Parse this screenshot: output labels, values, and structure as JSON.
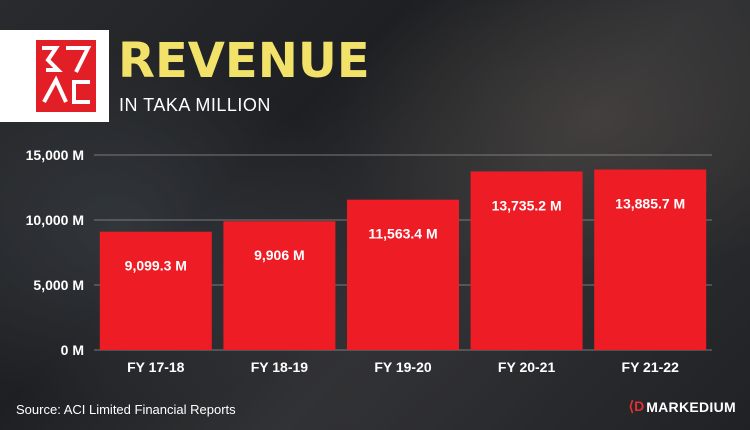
{
  "header": {
    "title": "REVENUE",
    "subtitle": "IN TAKA MILLION"
  },
  "footer": {
    "source": "Source: ACI Limited Financial Reports",
    "brand_mark": "⟨D",
    "brand_name": "MARKEDIUM"
  },
  "colors": {
    "bar": "#ee1c25",
    "title": "#f3e26a",
    "grid": "#9a9a9a"
  },
  "chart_data": {
    "type": "bar",
    "categories": [
      "FY 17-18",
      "FY 18-19",
      "FY 19-20",
      "FY 20-21",
      "FY 21-22"
    ],
    "values": [
      9099.3,
      9906,
      11563.4,
      13735.2,
      13885.7
    ],
    "value_labels": [
      "9,099.3 M",
      "9,906 M",
      "11,563.4 M",
      "13,735.2 M",
      "13,885.7 M"
    ],
    "ylim": [
      0,
      15000
    ],
    "yticks": [
      0,
      5000,
      10000,
      15000
    ],
    "ytick_labels": [
      "0 M",
      "5,000 M",
      "10,000 M",
      "15,000 M"
    ],
    "grid": true,
    "legend": "none"
  }
}
